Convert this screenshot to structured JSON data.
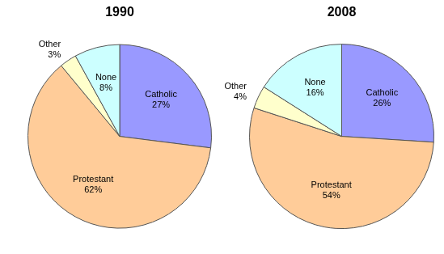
{
  "chart_data": [
    {
      "type": "pie",
      "title": "1990",
      "categories": [
        "Catholic",
        "Protestant",
        "Other",
        "None"
      ],
      "values": [
        27,
        62,
        3,
        8
      ],
      "value_labels": [
        "27%",
        "62%",
        "3%",
        "8%"
      ],
      "colors": [
        "#9999ff",
        "#ffcc99",
        "#ffffcc",
        "#ccffff"
      ],
      "data_labels": true
    },
    {
      "type": "pie",
      "title": "2008",
      "categories": [
        "Catholic",
        "Protestant",
        "Other",
        "None"
      ],
      "values": [
        26,
        54,
        4,
        16
      ],
      "value_labels": [
        "26%",
        "54%",
        "4%",
        "16%"
      ],
      "colors": [
        "#9999ff",
        "#ffcc99",
        "#ffffcc",
        "#ccffff"
      ],
      "data_labels": true
    }
  ]
}
